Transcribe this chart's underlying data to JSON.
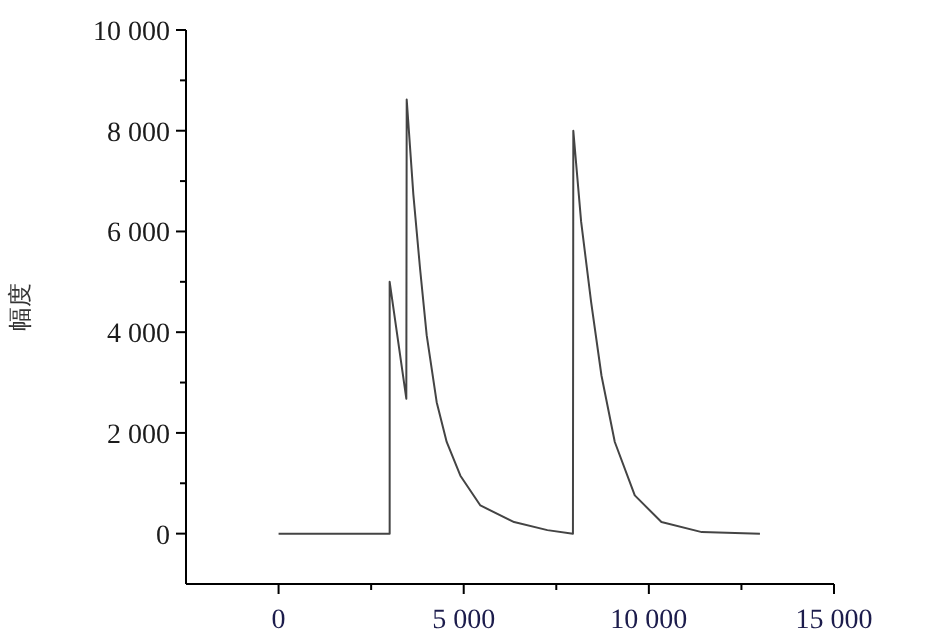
{
  "chart_data": {
    "type": "line",
    "ylabel": "幅度",
    "series": [
      {
        "color": "#444444",
        "x": [
          0,
          3000,
          3000,
          3450,
          3460,
          3640,
          3820,
          4000,
          4270,
          4540,
          4910,
          5450,
          6360,
          7260,
          7950,
          7960,
          8170,
          8440,
          8720,
          9080,
          9620,
          10340,
          11430,
          13000
        ],
        "values": [
          0,
          0,
          5000,
          2680,
          8620,
          6730,
          5270,
          3940,
          2610,
          1820,
          1150,
          560,
          230,
          70,
          0,
          8000,
          6200,
          4600,
          3140,
          1820,
          760,
          230,
          30,
          0
        ]
      }
    ],
    "xlim": [
      -2500,
      15000
    ],
    "xticks": [
      {
        "value": 0,
        "label": "0"
      },
      {
        "value": 2500,
        "label": null
      },
      {
        "value": 5000,
        "label": "5 000"
      },
      {
        "value": 7500,
        "label": null
      },
      {
        "value": 10000,
        "label": "10 000"
      },
      {
        "value": 12500,
        "label": null
      },
      {
        "value": 15000,
        "label": "15 000"
      }
    ],
    "ylim": [
      -1000,
      10000
    ],
    "yticks": [
      {
        "value": 0,
        "label": "0"
      },
      {
        "value": 1000,
        "label": null
      },
      {
        "value": 2000,
        "label": "2 000"
      },
      {
        "value": 3000,
        "label": null
      },
      {
        "value": 4000,
        "label": "4 000"
      },
      {
        "value": 5000,
        "label": null
      },
      {
        "value": 6000,
        "label": "6 000"
      },
      {
        "value": 7000,
        "label": null
      },
      {
        "value": 8000,
        "label": "8 000"
      },
      {
        "value": 9000,
        "label": null
      },
      {
        "value": 10000,
        "label": "10 000"
      }
    ],
    "grid": false,
    "marker": "none",
    "line_style": "solid"
  }
}
